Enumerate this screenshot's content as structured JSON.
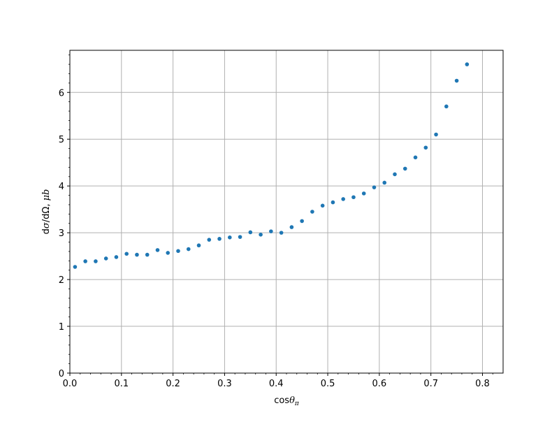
{
  "chart_data": {
    "type": "scatter",
    "title": "",
    "xlabel": "cosθπ",
    "ylabel": "dσ/dΩ, μb",
    "xlim": [
      0.0,
      0.84
    ],
    "ylim": [
      0,
      6.9
    ],
    "grid": true,
    "marker_color": "#1f77b4",
    "x_ticks": [
      0.0,
      0.1,
      0.2,
      0.3,
      0.4,
      0.5,
      0.6,
      0.7,
      0.8
    ],
    "x_tick_labels": [
      "0.0",
      "0.1",
      "0.2",
      "0.3",
      "0.4",
      "0.5",
      "0.6",
      "0.7",
      "0.8"
    ],
    "y_ticks": [
      0,
      1,
      2,
      3,
      4,
      5,
      6
    ],
    "y_tick_labels": [
      "0",
      "1",
      "2",
      "3",
      "4",
      "5",
      "6"
    ],
    "series": [
      {
        "x": [
          0.01,
          0.03,
          0.05,
          0.07,
          0.09,
          0.11,
          0.13,
          0.15,
          0.17,
          0.19,
          0.21,
          0.23,
          0.25,
          0.27,
          0.29,
          0.31,
          0.33,
          0.35,
          0.37,
          0.39,
          0.41,
          0.43,
          0.45,
          0.47,
          0.49,
          0.51,
          0.53,
          0.55,
          0.57,
          0.59,
          0.61,
          0.63,
          0.65,
          0.67,
          0.69,
          0.71,
          0.73,
          0.75,
          0.77
        ],
        "y": [
          2.27,
          2.39,
          2.39,
          2.45,
          2.48,
          2.55,
          2.53,
          2.53,
          2.63,
          2.57,
          2.61,
          2.65,
          2.73,
          2.85,
          2.87,
          2.9,
          2.91,
          3.01,
          2.96,
          3.03,
          3.0,
          3.12,
          3.25,
          3.45,
          3.58,
          3.65,
          3.72,
          3.76,
          3.84,
          3.97,
          4.07,
          4.25,
          4.37,
          4.61,
          4.82,
          5.1,
          5.7,
          6.25,
          6.6
        ]
      }
    ]
  }
}
